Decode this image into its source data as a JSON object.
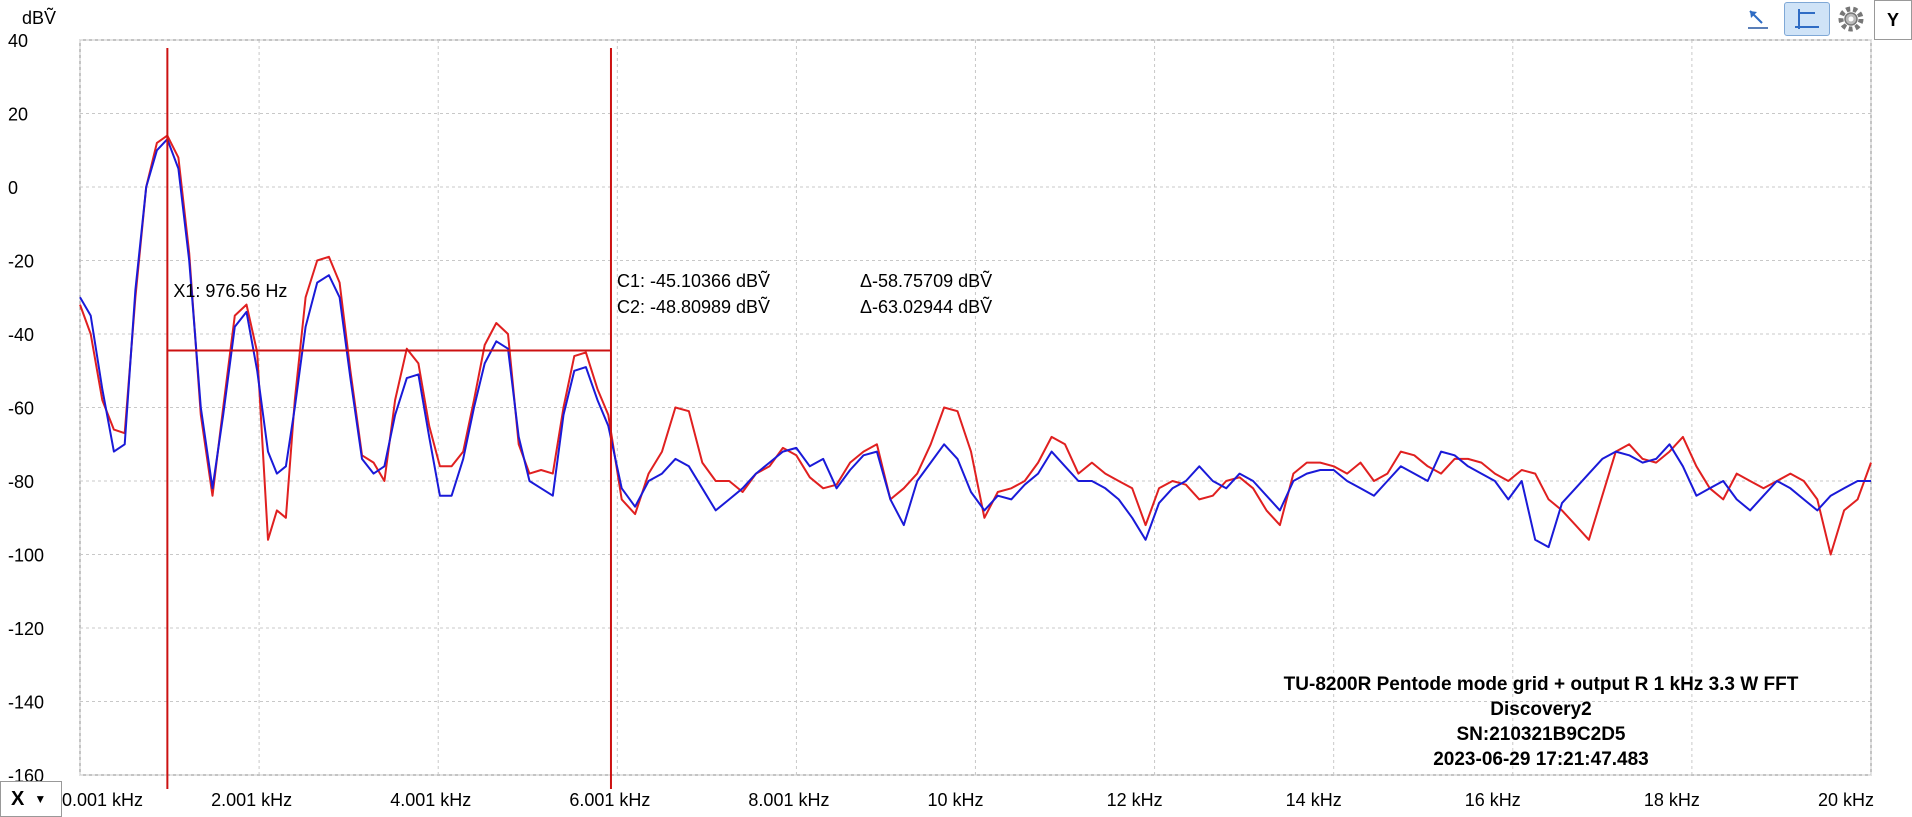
{
  "toolbar": {
    "icons": [
      "cursor-arrow-icon",
      "horizontal-cursor-icon",
      "gear-icon"
    ],
    "y_button_label": "Y",
    "x_button_label": "X",
    "x_dropdown_glyph": "▼"
  },
  "chart_data": {
    "type": "line",
    "ylabel": "dBṼ",
    "xunit": "Hz",
    "xlim": [
      1,
      20000
    ],
    "ylim": [
      -160,
      40
    ],
    "grid": true,
    "yticks": [
      40,
      20,
      0,
      -20,
      -40,
      -60,
      -80,
      -100,
      -120,
      -140,
      -160
    ],
    "xticks": [
      {
        "value": 1,
        "label": "0.001 kHz"
      },
      {
        "value": 2001,
        "label": "2.001 kHz"
      },
      {
        "value": 4001,
        "label": "4.001 kHz"
      },
      {
        "value": 6001,
        "label": "6.001 kHz"
      },
      {
        "value": 8001,
        "label": "8.001 kHz"
      },
      {
        "value": 10000,
        "label": "10 kHz"
      },
      {
        "value": 12000,
        "label": "12 kHz"
      },
      {
        "value": 14000,
        "label": "14 kHz"
      },
      {
        "value": 16000,
        "label": "16 kHz"
      },
      {
        "value": 18000,
        "label": "18 kHz"
      },
      {
        "value": 20000,
        "label": "20 kHz"
      }
    ],
    "colors": {
      "red": "#e02020",
      "blue": "#1a1ad8",
      "cursor": "#cc1111",
      "grid": "#c8c8c8"
    },
    "cursors": {
      "x1": 976.56,
      "x2": 5930,
      "x1_label": "X1: 976.56 Hz",
      "level": -44.5,
      "c1": "C1: -45.10366 dBṼ",
      "c2": "C2: -48.80989 dBṼ",
      "d1": "Δ-58.75709 dBṼ",
      "d2": "Δ-63.02944 dBṼ"
    },
    "info": {
      "line1": "TU-8200R Pentode mode grid + output R 1 kHz 3.3 W FFT",
      "line2": "Discovery2",
      "line3": "SN:210321B9C2D5",
      "line4": "2023-06-29 17:21:47.483"
    },
    "series": [
      {
        "color": "#e02020",
        "x": [
          1,
          120,
          250,
          380,
          500,
          620,
          740,
          860,
          976,
          1100,
          1220,
          1350,
          1480,
          1600,
          1730,
          1860,
          1980,
          2100,
          2200,
          2300,
          2400,
          2520,
          2650,
          2780,
          2900,
          3020,
          3150,
          3280,
          3400,
          3520,
          3650,
          3780,
          3900,
          4020,
          4150,
          4280,
          4400,
          4520,
          4650,
          4780,
          4900,
          5020,
          5150,
          5280,
          5400,
          5520,
          5650,
          5780,
          5900,
          6050,
          6200,
          6350,
          6500,
          6650,
          6800,
          6950,
          7100,
          7250,
          7400,
          7550,
          7700,
          7850,
          8000,
          8150,
          8300,
          8450,
          8600,
          8750,
          8900,
          9050,
          9200,
          9350,
          9500,
          9650,
          9800,
          9950,
          10100,
          10250,
          10400,
          10550,
          10700,
          10850,
          11000,
          11150,
          11300,
          11450,
          11600,
          11750,
          11900,
          12050,
          12200,
          12350,
          12500,
          12650,
          12800,
          12950,
          13100,
          13250,
          13400,
          13550,
          13700,
          13850,
          14000,
          14150,
          14300,
          14450,
          14600,
          14750,
          14900,
          15050,
          15200,
          15350,
          15500,
          15650,
          15800,
          15950,
          16100,
          16250,
          16400,
          16550,
          16700,
          16850,
          17000,
          17150,
          17300,
          17450,
          17600,
          17750,
          17900,
          18050,
          18200,
          18350,
          18500,
          18650,
          18800,
          18950,
          19100,
          19250,
          19400,
          19550,
          19700,
          19850,
          20000
        ],
        "y": [
          -32,
          -40,
          -58,
          -66,
          -67,
          -30,
          0,
          12,
          14,
          8,
          -18,
          -62,
          -84,
          -60,
          -35,
          -32,
          -45,
          -96,
          -88,
          -90,
          -58,
          -30,
          -20,
          -19,
          -26,
          -50,
          -73,
          -75,
          -80,
          -58,
          -44,
          -48,
          -65,
          -76,
          -76,
          -72,
          -58,
          -43,
          -37,
          -40,
          -70,
          -78,
          -77,
          -78,
          -60,
          -46,
          -45,
          -55,
          -62,
          -85,
          -89,
          -78,
          -72,
          -60,
          -61,
          -75,
          -80,
          -80,
          -83,
          -78,
          -76,
          -71,
          -73,
          -79,
          -82,
          -81,
          -75,
          -72,
          -70,
          -85,
          -82,
          -78,
          -70,
          -60,
          -61,
          -72,
          -90,
          -83,
          -82,
          -80,
          -75,
          -68,
          -70,
          -78,
          -75,
          -78,
          -80,
          -82,
          -92,
          -82,
          -80,
          -81,
          -85,
          -84,
          -80,
          -79,
          -82,
          -88,
          -92,
          -78,
          -75,
          -75,
          -76,
          -78,
          -75,
          -80,
          -78,
          -72,
          -73,
          -76,
          -78,
          -74,
          -74,
          -75,
          -78,
          -80,
          -77,
          -78,
          -85,
          -88,
          -92,
          -96,
          -84,
          -72,
          -70,
          -74,
          -75,
          -72,
          -68,
          -76,
          -82,
          -85,
          -78,
          -80,
          -82,
          -80,
          -78,
          -80,
          -85,
          -100,
          -88,
          -85,
          -75
        ]
      },
      {
        "color": "#1a1ad8",
        "x": [
          1,
          120,
          250,
          380,
          500,
          620,
          740,
          860,
          976,
          1100,
          1220,
          1350,
          1480,
          1600,
          1730,
          1860,
          1980,
          2100,
          2200,
          2300,
          2400,
          2520,
          2650,
          2780,
          2900,
          3020,
          3150,
          3280,
          3400,
          3520,
          3650,
          3780,
          3900,
          4020,
          4150,
          4280,
          4400,
          4520,
          4650,
          4780,
          4900,
          5020,
          5150,
          5280,
          5400,
          5520,
          5650,
          5780,
          5900,
          6050,
          6200,
          6350,
          6500,
          6650,
          6800,
          6950,
          7100,
          7250,
          7400,
          7550,
          7700,
          7850,
          8000,
          8150,
          8300,
          8450,
          8600,
          8750,
          8900,
          9050,
          9200,
          9350,
          9500,
          9650,
          9800,
          9950,
          10100,
          10250,
          10400,
          10550,
          10700,
          10850,
          11000,
          11150,
          11300,
          11450,
          11600,
          11750,
          11900,
          12050,
          12200,
          12350,
          12500,
          12650,
          12800,
          12950,
          13100,
          13250,
          13400,
          13550,
          13700,
          13850,
          14000,
          14150,
          14300,
          14450,
          14600,
          14750,
          14900,
          15050,
          15200,
          15350,
          15500,
          15650,
          15800,
          15950,
          16100,
          16250,
          16400,
          16550,
          16700,
          16850,
          17000,
          17150,
          17300,
          17450,
          17600,
          17750,
          17900,
          18050,
          18200,
          18350,
          18500,
          18650,
          18800,
          18950,
          19100,
          19250,
          19400,
          19550,
          19700,
          19850,
          20000
        ],
        "y": [
          -30,
          -35,
          -55,
          -72,
          -70,
          -28,
          0,
          10,
          13,
          5,
          -20,
          -60,
          -82,
          -62,
          -38,
          -34,
          -50,
          -72,
          -78,
          -76,
          -60,
          -38,
          -26,
          -24,
          -30,
          -52,
          -74,
          -78,
          -76,
          -62,
          -52,
          -51,
          -68,
          -84,
          -84,
          -74,
          -60,
          -48,
          -42,
          -44,
          -68,
          -80,
          -82,
          -84,
          -62,
          -50,
          -49,
          -58,
          -65,
          -82,
          -87,
          -80,
          -78,
          -74,
          -76,
          -82,
          -88,
          -85,
          -82,
          -78,
          -75,
          -72,
          -71,
          -76,
          -74,
          -82,
          -77,
          -73,
          -72,
          -85,
          -92,
          -80,
          -75,
          -70,
          -74,
          -83,
          -88,
          -84,
          -85,
          -81,
          -78,
          -72,
          -76,
          -80,
          -80,
          -82,
          -85,
          -90,
          -96,
          -86,
          -82,
          -80,
          -76,
          -80,
          -82,
          -78,
          -80,
          -84,
          -88,
          -80,
          -78,
          -77,
          -77,
          -80,
          -82,
          -84,
          -80,
          -76,
          -78,
          -80,
          -72,
          -73,
          -76,
          -78,
          -80,
          -85,
          -80,
          -96,
          -98,
          -86,
          -82,
          -78,
          -74,
          -72,
          -73,
          -75,
          -74,
          -70,
          -76,
          -84,
          -82,
          -80,
          -85,
          -88,
          -84,
          -80,
          -82,
          -85,
          -88,
          -84,
          -82,
          -80,
          -80
        ]
      }
    ]
  }
}
